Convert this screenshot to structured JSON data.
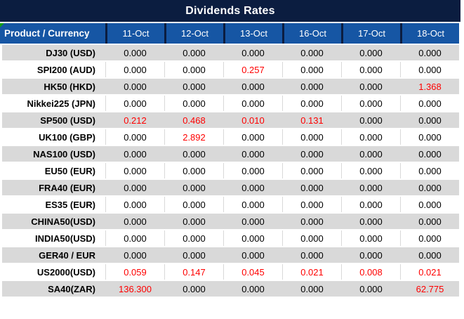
{
  "title": "Dividends Rates",
  "colors": {
    "title_bg": "#0B1D40",
    "header_bg": "#1656A4",
    "header_separator": "#0B1D40",
    "alt_row_bg": "#D9D9D9",
    "value_text": "#000000",
    "highlight_text": "#FF0000",
    "header_text": "#FFFFFF",
    "corner_marker_green": "#14A014"
  },
  "table": {
    "product_header": "Product / Currency",
    "date_headers": [
      "11-Oct",
      "12-Oct",
      "13-Oct",
      "16-Oct",
      "17-Oct",
      "18-Oct"
    ],
    "rows": [
      {
        "product": "DJ30 (USD)",
        "values": [
          "0.000",
          "0.000",
          "0.000",
          "0.000",
          "0.000",
          "0.000"
        ],
        "red": [
          false,
          false,
          false,
          false,
          false,
          false
        ]
      },
      {
        "product": "SPI200 (AUD)",
        "values": [
          "0.000",
          "0.000",
          "0.257",
          "0.000",
          "0.000",
          "0.000"
        ],
        "red": [
          false,
          false,
          true,
          false,
          false,
          false
        ]
      },
      {
        "product": "HK50 (HKD)",
        "values": [
          "0.000",
          "0.000",
          "0.000",
          "0.000",
          "0.000",
          "1.368"
        ],
        "red": [
          false,
          false,
          false,
          false,
          false,
          true
        ]
      },
      {
        "product": "Nikkei225 (JPN)",
        "values": [
          "0.000",
          "0.000",
          "0.000",
          "0.000",
          "0.000",
          "0.000"
        ],
        "red": [
          false,
          false,
          false,
          false,
          false,
          false
        ]
      },
      {
        "product": "SP500 (USD)",
        "values": [
          "0.212",
          "0.468",
          "0.010",
          "0.131",
          "0.000",
          "0.000"
        ],
        "red": [
          true,
          true,
          true,
          true,
          false,
          false
        ]
      },
      {
        "product": "UK100 (GBP)",
        "values": [
          "0.000",
          "2.892",
          "0.000",
          "0.000",
          "0.000",
          "0.000"
        ],
        "red": [
          false,
          true,
          false,
          false,
          false,
          false
        ]
      },
      {
        "product": "NAS100 (USD)",
        "values": [
          "0.000",
          "0.000",
          "0.000",
          "0.000",
          "0.000",
          "0.000"
        ],
        "red": [
          false,
          false,
          false,
          false,
          false,
          false
        ]
      },
      {
        "product": "EU50 (EUR)",
        "values": [
          "0.000",
          "0.000",
          "0.000",
          "0.000",
          "0.000",
          "0.000"
        ],
        "red": [
          false,
          false,
          false,
          false,
          false,
          false
        ]
      },
      {
        "product": "FRA40 (EUR)",
        "values": [
          "0.000",
          "0.000",
          "0.000",
          "0.000",
          "0.000",
          "0.000"
        ],
        "red": [
          false,
          false,
          false,
          false,
          false,
          false
        ]
      },
      {
        "product": "ES35 (EUR)",
        "values": [
          "0.000",
          "0.000",
          "0.000",
          "0.000",
          "0.000",
          "0.000"
        ],
        "red": [
          false,
          false,
          false,
          false,
          false,
          false
        ]
      },
      {
        "product": "CHINA50(USD)",
        "values": [
          "0.000",
          "0.000",
          "0.000",
          "0.000",
          "0.000",
          "0.000"
        ],
        "red": [
          false,
          false,
          false,
          false,
          false,
          false
        ]
      },
      {
        "product": "INDIA50(USD)",
        "values": [
          "0.000",
          "0.000",
          "0.000",
          "0.000",
          "0.000",
          "0.000"
        ],
        "red": [
          false,
          false,
          false,
          false,
          false,
          false
        ]
      },
      {
        "product": "GER40 / EUR",
        "values": [
          "0.000",
          "0.000",
          "0.000",
          "0.000",
          "0.000",
          "0.000"
        ],
        "red": [
          false,
          false,
          false,
          false,
          false,
          false
        ]
      },
      {
        "product": "US2000(USD)",
        "values": [
          "0.059",
          "0.147",
          "0.045",
          "0.021",
          "0.008",
          "0.021"
        ],
        "red": [
          true,
          true,
          true,
          true,
          true,
          true
        ]
      },
      {
        "product": "SA40(ZAR)",
        "values": [
          "136.300",
          "0.000",
          "0.000",
          "0.000",
          "0.000",
          "62.775"
        ],
        "red": [
          true,
          false,
          false,
          false,
          false,
          true
        ]
      }
    ]
  }
}
